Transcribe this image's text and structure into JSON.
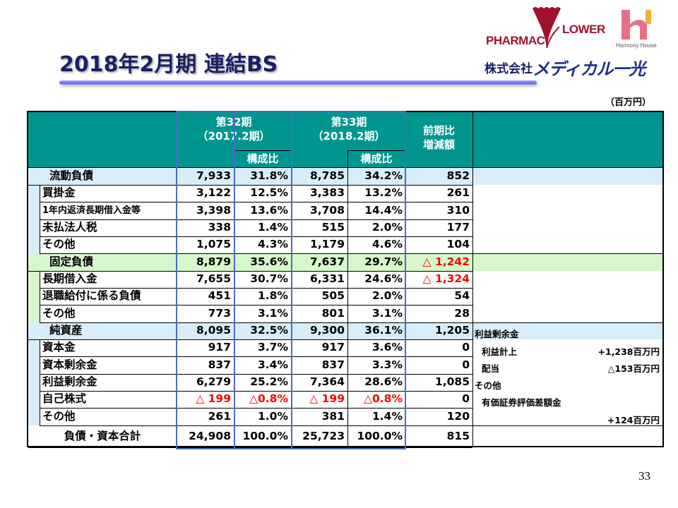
{
  "header": {
    "title": "2018年2月期 連結BS",
    "unit": "（百万円）",
    "page_number": "33"
  },
  "logos": {
    "pharmac_left": "PHARMAC",
    "pharmac_right": "LOWER",
    "harmony_caption": "Harmony House",
    "company_prefix": "株式会社",
    "company_name": "メディカル一光"
  },
  "colors": {
    "header_teal": "#00968f",
    "band_blue": "#d7eefa",
    "band_green": "#d6f7cc",
    "period_frame": "#4a6cc4",
    "negative": "#ff0000",
    "title": "#1a1f66"
  },
  "table": {
    "columns": {
      "p32_title": "第32期",
      "p32_sub": "（2017.2期）",
      "p33_title": "第33期",
      "p33_sub": "（2018.2期）",
      "ratio": "構成比",
      "diff_line1": "前期比",
      "diff_line2": "増減額"
    },
    "rows": [
      {
        "label": "流動負債",
        "v32": "7,933",
        "p32": "31.8%",
        "v33": "8,785",
        "p33": "34.2%",
        "diff": "852"
      },
      {
        "label": "買掛金",
        "v32": "3,122",
        "p32": "12.5%",
        "v33": "3,383",
        "p33": "13.2%",
        "diff": "261"
      },
      {
        "label": "1年内返済長期借入金等",
        "v32": "3,398",
        "p32": "13.6%",
        "v33": "3,708",
        "p33": "14.4%",
        "diff": "310"
      },
      {
        "label": "未払法人税",
        "v32": "338",
        "p32": "1.4%",
        "v33": "515",
        "p33": "2.0%",
        "diff": "177"
      },
      {
        "label": "その他",
        "v32": "1,075",
        "p32": "4.3%",
        "v33": "1,179",
        "p33": "4.6%",
        "diff": "104"
      },
      {
        "label": "固定負債",
        "v32": "8,879",
        "p32": "35.6%",
        "v33": "7,637",
        "p33": "29.7%",
        "diff": "△ 1,242"
      },
      {
        "label": "長期借入金",
        "v32": "7,655",
        "p32": "30.7%",
        "v33": "6,331",
        "p33": "24.6%",
        "diff": "△ 1,324"
      },
      {
        "label": "退職給付に係る負債",
        "v32": "451",
        "p32": "1.8%",
        "v33": "505",
        "p33": "2.0%",
        "diff": "54"
      },
      {
        "label": "その他",
        "v32": "773",
        "p32": "3.1%",
        "v33": "801",
        "p33": "3.1%",
        "diff": "28"
      },
      {
        "label": "純資産",
        "v32": "8,095",
        "p32": "32.5%",
        "v33": "9,300",
        "p33": "36.1%",
        "diff": "1,205"
      },
      {
        "label": "資本金",
        "v32": "917",
        "p32": "3.7%",
        "v33": "917",
        "p33": "3.6%",
        "diff": "0"
      },
      {
        "label": "資本剰余金",
        "v32": "837",
        "p32": "3.4%",
        "v33": "837",
        "p33": "3.3%",
        "diff": "0"
      },
      {
        "label": "利益剰余金",
        "v32": "6,279",
        "p32": "25.2%",
        "v33": "7,364",
        "p33": "28.6%",
        "diff": "1,085"
      },
      {
        "label": "自己株式",
        "v32": "△ 199",
        "p32": "△0.8%",
        "v33": "△ 199",
        "p33": "△0.8%",
        "diff": "0"
      },
      {
        "label": "その他",
        "v32": "261",
        "p32": "1.0%",
        "v33": "381",
        "p33": "1.4%",
        "diff": "120"
      },
      {
        "label": "負債・資本合計",
        "v32": "24,908",
        "p32": "100.0%",
        "v33": "25,723",
        "p33": "100.0%",
        "diff": "815"
      }
    ],
    "notes": {
      "retained_title": "利益剰余金",
      "profit_label": "利益計上",
      "profit_value": "+1,238百万円",
      "dividend_label": "配当",
      "dividend_value": "△153百万円",
      "other_title": "その他",
      "securities_label": "有価証券評価差額金",
      "securities_value": "+124百万円"
    }
  }
}
